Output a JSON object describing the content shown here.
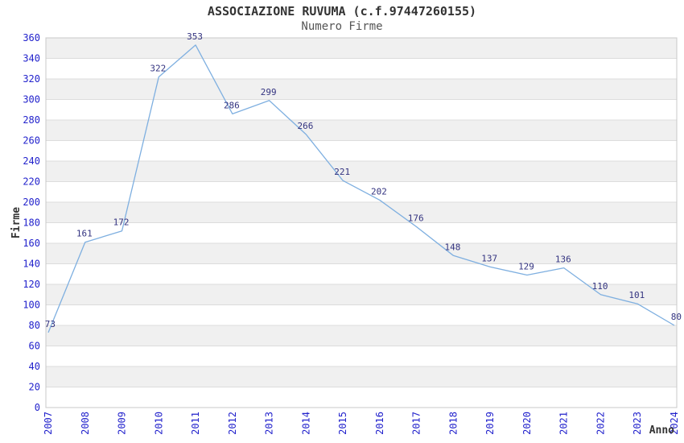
{
  "chart_data": {
    "type": "line",
    "title": "ASSOCIAZIONE RUVUMA (c.f.97447260155)",
    "subtitle": "Numero Firme",
    "xlabel": "Anno",
    "ylabel": "Firme",
    "x": [
      "2007",
      "2008",
      "2009",
      "2010",
      "2011",
      "2012",
      "2013",
      "2014",
      "2015",
      "2016",
      "2017",
      "2018",
      "2019",
      "2020",
      "2021",
      "2022",
      "2023",
      "2024"
    ],
    "values": [
      73,
      161,
      172,
      322,
      353,
      286,
      299,
      266,
      221,
      202,
      176,
      148,
      137,
      129,
      136,
      110,
      101,
      80
    ],
    "ylim": [
      0,
      360
    ],
    "ytick_step": 20,
    "grid": "horizontal-bands",
    "legend": "none",
    "point_markers": false,
    "colors": {
      "line": "#7eafe0",
      "band": "#f0f0f0",
      "grid": "#dcdcdc",
      "border": "#c8c8c8",
      "tick_label": "#2222cc",
      "value_label": "#333380",
      "title": "#333333",
      "subtitle": "#555555",
      "axis_title": "#333333"
    }
  }
}
